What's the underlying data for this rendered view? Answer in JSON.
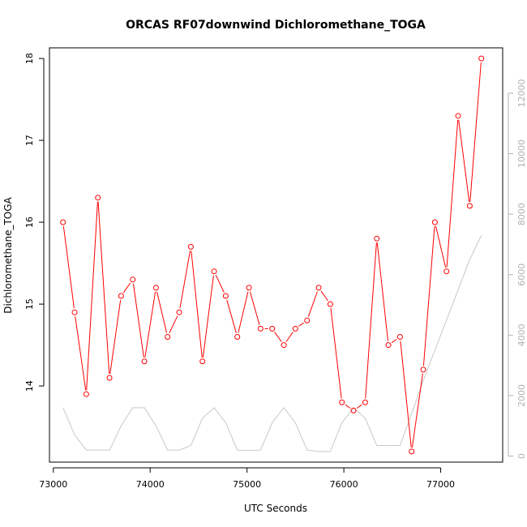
{
  "chart_data": {
    "type": "line",
    "title": "ORCAS RF07downwind Dichloromethane_TOGA",
    "xlabel": "UTC Seconds",
    "ylabel": "Dichloromethane_TOGA",
    "xlim": [
      72960,
      77640
    ],
    "ylim": [
      13.07,
      18.13
    ],
    "y2lim": [
      -200,
      13500
    ],
    "x_ticks": [
      73000,
      74000,
      75000,
      76000,
      77000
    ],
    "y_ticks": [
      14,
      15,
      16,
      17,
      18
    ],
    "y2_ticks": [
      0,
      2000,
      4000,
      6000,
      8000,
      10000,
      12000
    ],
    "grid": false,
    "series": [
      {
        "color": "#ff0000",
        "axis": "left",
        "x": [
          73100,
          73220,
          73340,
          73460,
          73580,
          73700,
          73820,
          73940,
          74060,
          74180,
          74300,
          74420,
          74540,
          74660,
          74780,
          74900,
          75020,
          75140,
          75260,
          75380,
          75500,
          75620,
          75740,
          75860,
          75980,
          76100,
          76220,
          76340,
          76460,
          76580,
          76700,
          76820,
          76940,
          77060,
          77180,
          77300,
          77420
        ],
        "values": [
          16.0,
          14.9,
          13.9,
          16.3,
          14.1,
          15.1,
          15.3,
          14.3,
          15.2,
          14.6,
          14.9,
          15.7,
          14.3,
          15.4,
          15.1,
          14.6,
          15.2,
          14.7,
          14.7,
          14.5,
          14.7,
          14.8,
          15.2,
          15.0,
          13.8,
          13.7,
          13.8,
          15.8,
          14.5,
          14.6,
          13.2,
          14.2,
          16.0,
          15.4,
          17.3,
          16.2,
          18.0
        ]
      },
      {
        "color": "#c8c8c8",
        "axis": "right",
        "x": [
          73100,
          73220,
          73340,
          73460,
          73580,
          73700,
          73820,
          73940,
          74060,
          74180,
          74300,
          74420,
          74540,
          74660,
          74780,
          74900,
          75020,
          75140,
          75260,
          75380,
          75500,
          75620,
          75740,
          75860,
          75980,
          76100,
          76220,
          76340,
          76460,
          76580,
          76700,
          76820,
          76940,
          77060,
          77180,
          77300,
          77420
        ],
        "values": [
          1600,
          700,
          200,
          200,
          200,
          1000,
          1600,
          1600,
          1000,
          200,
          200,
          350,
          1250,
          1600,
          1100,
          200,
          180,
          200,
          1100,
          1600,
          1100,
          200,
          150,
          150,
          1100,
          1600,
          1250,
          350,
          350,
          350,
          1400,
          2500,
          3500,
          4500,
          5500,
          6500,
          7300
        ]
      }
    ]
  }
}
